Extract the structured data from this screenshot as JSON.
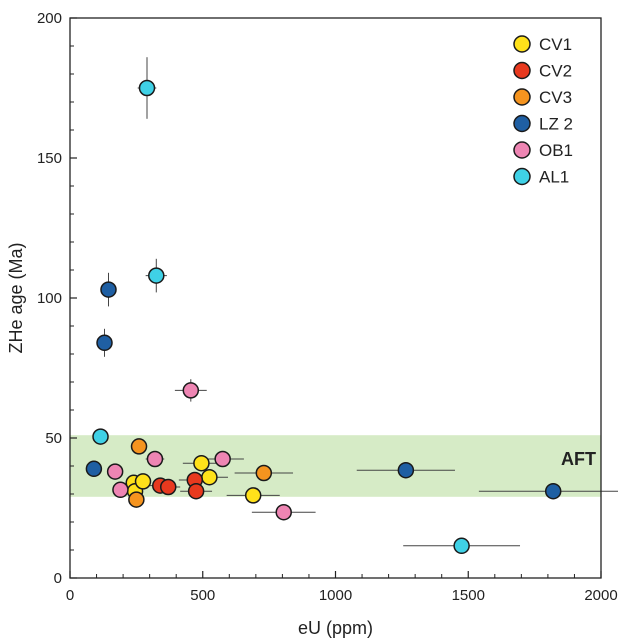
{
  "chart_data": {
    "type": "scatter",
    "xlabel": "eU (ppm)",
    "ylabel": "ZHe age (Ma)",
    "xlim": [
      0,
      2000
    ],
    "ylim": [
      0,
      200
    ],
    "xticks": [
      0,
      500,
      1000,
      1500,
      2000
    ],
    "yticks": [
      0,
      50,
      100,
      150,
      200
    ],
    "grid": false,
    "legend_position": "top-right",
    "band": {
      "label": "AFT",
      "y_range": [
        29,
        51
      ],
      "color": "#d6ebc6"
    },
    "series": [
      {
        "name": "CV1",
        "color": "#ffe11a",
        "points": [
          {
            "x": 240,
            "y": 34,
            "xerr": 25,
            "yerr": 0
          },
          {
            "x": 245,
            "y": 31,
            "xerr": 25,
            "yerr": 0
          },
          {
            "x": 275,
            "y": 34.5,
            "xerr": 30,
            "yerr": 0
          },
          {
            "x": 495,
            "y": 41,
            "xerr": 70,
            "yerr": 0
          },
          {
            "x": 525,
            "y": 36,
            "xerr": 70,
            "yerr": 0
          },
          {
            "x": 690,
            "y": 29.5,
            "xerr": 100,
            "yerr": 0
          }
        ]
      },
      {
        "name": "CV2",
        "color": "#e8391e",
        "points": [
          {
            "x": 340,
            "y": 33,
            "xerr": 40,
            "yerr": 0
          },
          {
            "x": 370,
            "y": 32.5,
            "xerr": 45,
            "yerr": 0
          },
          {
            "x": 470,
            "y": 35,
            "xerr": 60,
            "yerr": 0
          },
          {
            "x": 475,
            "y": 31,
            "xerr": 60,
            "yerr": 0
          }
        ]
      },
      {
        "name": "CV3",
        "color": "#f5941f",
        "points": [
          {
            "x": 250,
            "y": 28,
            "xerr": 25,
            "yerr": 0
          },
          {
            "x": 260,
            "y": 47,
            "xerr": 25,
            "yerr": 0
          },
          {
            "x": 730,
            "y": 37.5,
            "xerr": 110,
            "yerr": 0
          }
        ]
      },
      {
        "name": "LZ 2",
        "color": "#1f5fa3",
        "points": [
          {
            "x": 90,
            "y": 39,
            "xerr": 10,
            "yerr": 0
          },
          {
            "x": 130,
            "y": 84,
            "xerr": 10,
            "yerr": 5
          },
          {
            "x": 145,
            "y": 103,
            "xerr": 12,
            "yerr": 6
          },
          {
            "x": 1265,
            "y": 38.5,
            "xerr": 185,
            "yerr": 0
          },
          {
            "x": 1820,
            "y": 31,
            "xerr": 280,
            "yerr": 0
          }
        ]
      },
      {
        "name": "OB1",
        "color": "#ee85b3",
        "points": [
          {
            "x": 170,
            "y": 38,
            "xerr": 15,
            "yerr": 0
          },
          {
            "x": 190,
            "y": 31.5,
            "xerr": 18,
            "yerr": 0
          },
          {
            "x": 320,
            "y": 42.5,
            "xerr": 35,
            "yerr": 0
          },
          {
            "x": 455,
            "y": 67,
            "xerr": 60,
            "yerr": 4
          },
          {
            "x": 575,
            "y": 42.5,
            "xerr": 80,
            "yerr": 0
          },
          {
            "x": 805,
            "y": 23.5,
            "xerr": 120,
            "yerr": 0
          }
        ]
      },
      {
        "name": "AL1",
        "color": "#3fd1e6",
        "points": [
          {
            "x": 115,
            "y": 50.5,
            "xerr": 10,
            "yerr": 0
          },
          {
            "x": 290,
            "y": 175,
            "xerr": 35,
            "yerr": 11
          },
          {
            "x": 325,
            "y": 108,
            "xerr": 40,
            "yerr": 6
          },
          {
            "x": 1475,
            "y": 11.5,
            "xerr": 220,
            "yerr": 0
          }
        ]
      }
    ]
  }
}
